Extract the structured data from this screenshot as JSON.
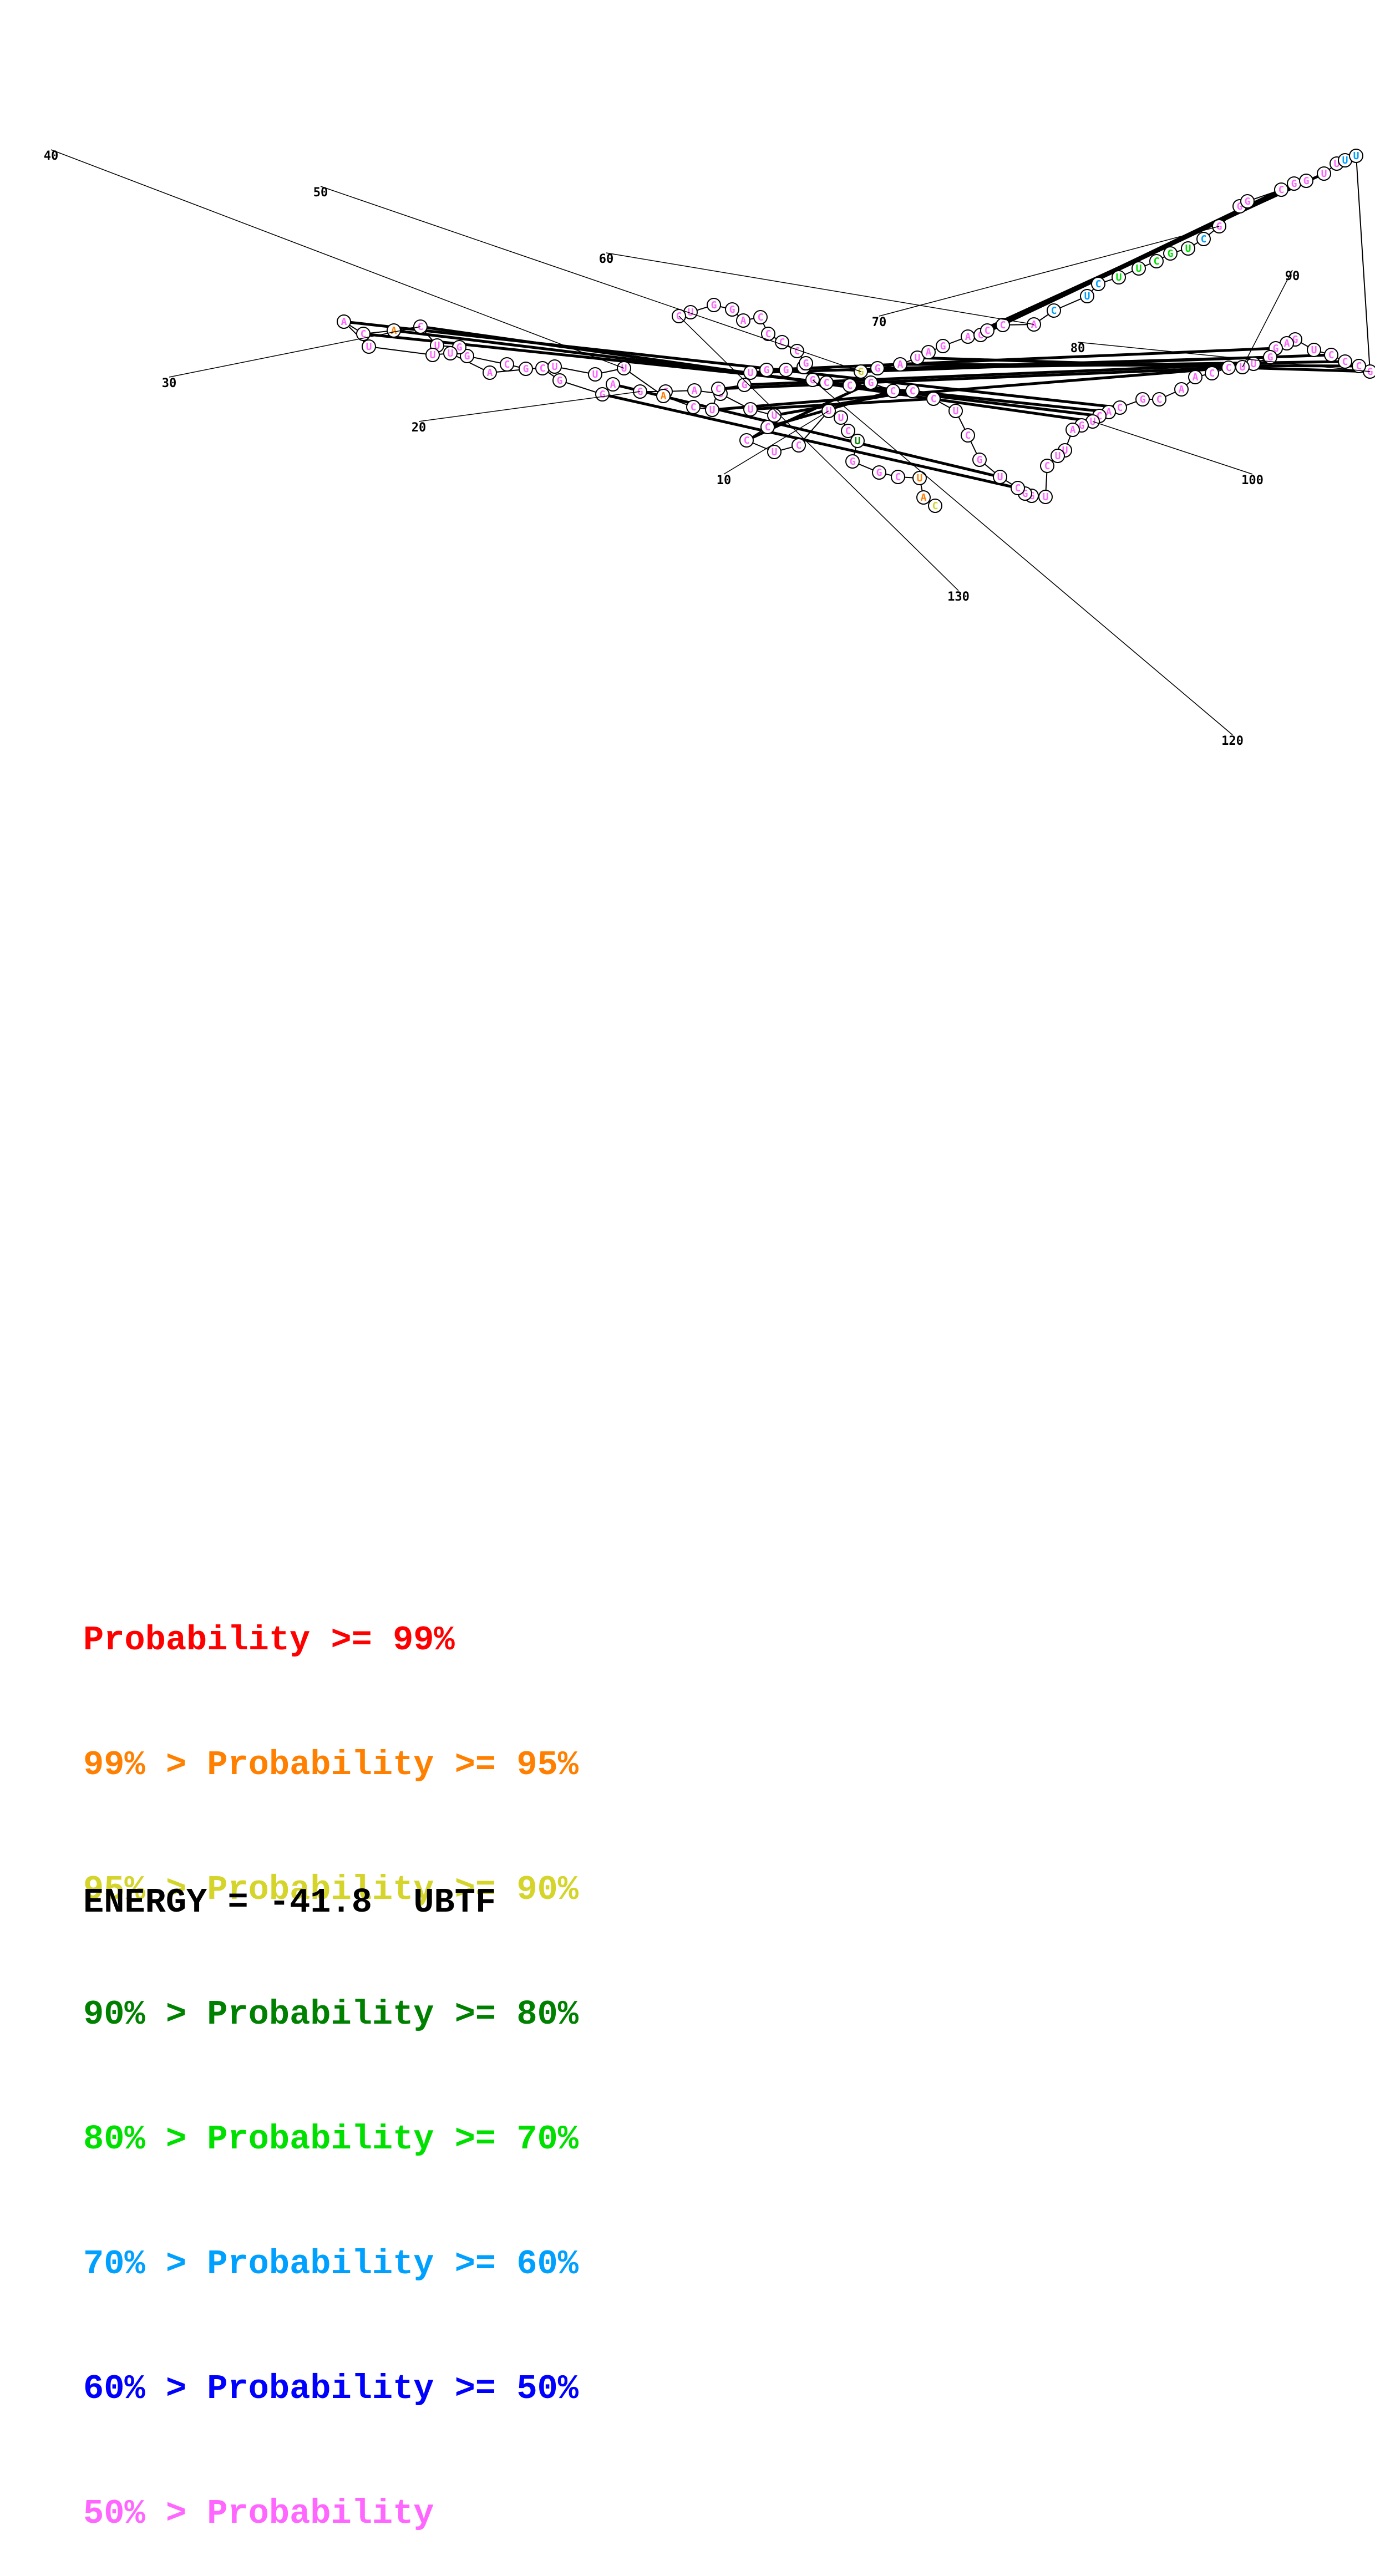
{
  "structure": {
    "sequence": "CAUCGGUCUUCUCCUUUACGAGGCGCGGUCACAUUUAUUUACUCGUGGUGGAUAGACCCACUCUUCGUCGGGCGGUUUUGCCCUGAGGUUCCAACGCACUGAUUCUGGCUGCUCCCGCCGGCCCCAGGUCUUCUCCCCUGC",
    "position_labels": [
      "10",
      "20",
      "30",
      "40",
      "50",
      "60",
      "70",
      "80",
      "90",
      "100",
      "120",
      "130"
    ]
  },
  "legend": [
    {
      "prefix": "",
      "label": "Probability >= 99%",
      "color": "#ff0000"
    },
    {
      "prefix": "99% > ",
      "label": "Probability >= 95%",
      "color": "#ff8000"
    },
    {
      "prefix": "95% > ",
      "label": "Probability >= 90%",
      "color": "#d4d42a"
    },
    {
      "prefix": "90% > ",
      "label": "Probability >= 80%",
      "color": "#008000"
    },
    {
      "prefix": "80% > ",
      "label": "Probability >= 70%",
      "color": "#00e000"
    },
    {
      "prefix": "70% > ",
      "label": "Probability >= 60%",
      "color": "#00a0ff"
    },
    {
      "prefix": "60% > ",
      "label": "Probability >= 50%",
      "color": "#0000ff"
    },
    {
      "prefix": "50% > ",
      "label": "Probability",
      "color": "#ff66ff"
    }
  ],
  "energy": {
    "label": "ENERGY =",
    "value": "-41.8",
    "name": "UBTF"
  }
}
